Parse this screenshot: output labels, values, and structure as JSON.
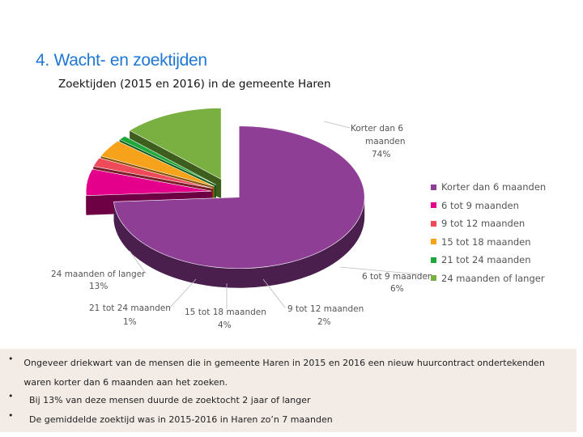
{
  "slide_title": "4. Wacht- en zoektijden",
  "chart_data": {
    "type": "pie",
    "title": "Zoektijden (2015 en 2016) in de gemeente Haren",
    "categories": [
      "Korter dan 6 maanden",
      "6 tot 9 maanden",
      "9 tot 12 maanden",
      "15 tot 18 maanden",
      "21 tot 24 maanden",
      "24 maanden of langer"
    ],
    "values": [
      74,
      6,
      2,
      4,
      1,
      13
    ],
    "value_labels": [
      "74%",
      "6%",
      "2%",
      "4%",
      "1%",
      "13%"
    ],
    "colors": [
      "#8e3f95",
      "#e5008c",
      "#ef4a5a",
      "#f7a21b",
      "#1fa83a",
      "#7ab041"
    ],
    "dark_colors": [
      "#4a1f4e",
      "#6e0044",
      "#7a1f29",
      "#8a5608",
      "#0d5a1c",
      "#3e5e1e"
    ],
    "legend_position": "right",
    "style": "3d-exploded"
  },
  "slice_labels": [
    {
      "line1": "Korter dan 6",
      "line2": "maanden",
      "value": "74%"
    },
    {
      "line1": "6 tot 9 maanden",
      "line2": "",
      "value": "6%"
    },
    {
      "line1": "9 tot 12 maanden",
      "line2": "",
      "value": "2%"
    },
    {
      "line1": "15 tot 18 maanden",
      "line2": "",
      "value": "4%"
    },
    {
      "line1": "21 tot 24 maanden",
      "line2": "",
      "value": "1%"
    },
    {
      "line1": "24 maanden of langer",
      "line2": "",
      "value": "13%"
    }
  ],
  "notes": [
    {
      "bullet": "•",
      "text": "Ongeveer driekwart van de mensen die in gemeente Haren in 2015 en 2016 een nieuw huurcontract ondertekenden waren korter dan 6 maanden aan het zoeken."
    },
    {
      "bullet": "•",
      "text": "Bij 13% van deze mensen duurde de zoektocht 2 jaar of langer"
    },
    {
      "bullet": "•",
      "text": "De gemiddelde zoektijd was in 2015-2016 in Haren zo’n 7 maanden"
    }
  ]
}
